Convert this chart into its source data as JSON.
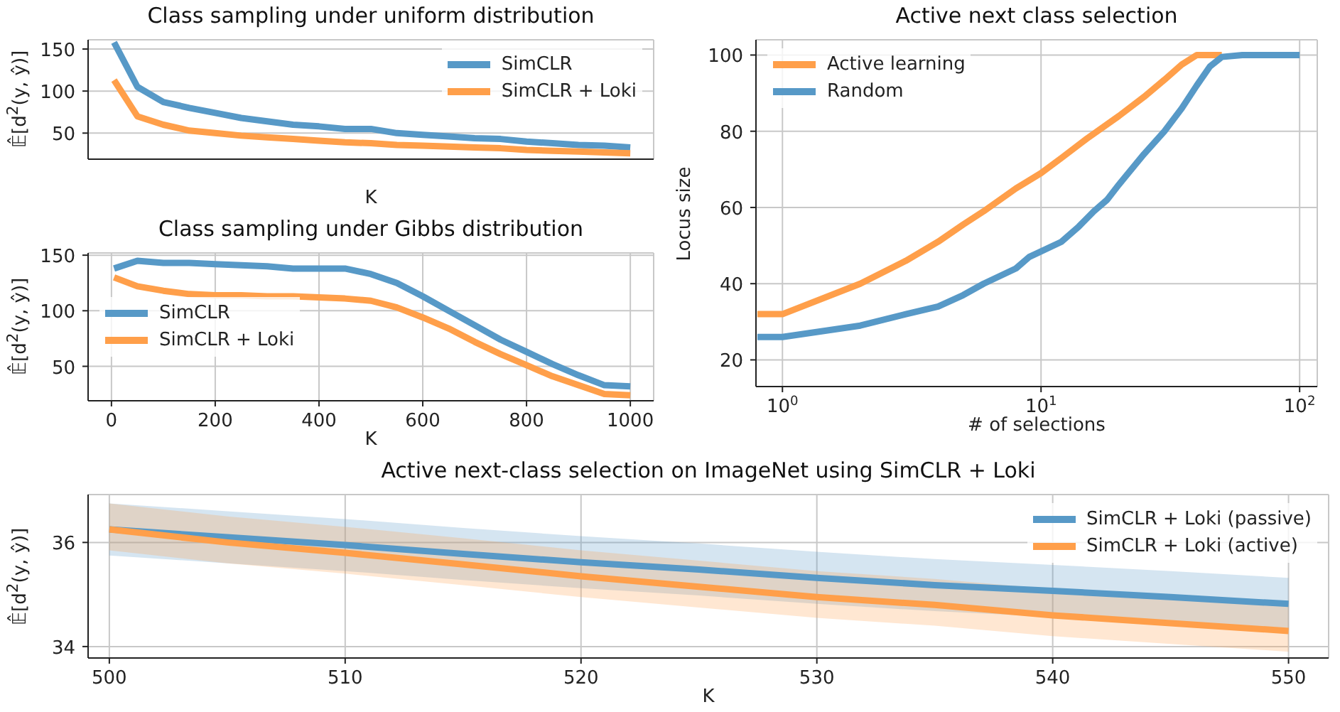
{
  "chart_data": [
    {
      "type": "line",
      "title": "Class sampling under uniform distribution",
      "xlabel": "K",
      "ylabel": "𝔼̂[d$^{2}$(y, ŷ)]",
      "xlim": [
        -45,
        1045
      ],
      "xticks": [
        0,
        200,
        400,
        600,
        800,
        1000
      ],
      "ylim": [
        19,
        161
      ],
      "yticks": [
        50,
        100,
        150
      ],
      "tick_labels": "y",
      "grid": true,
      "legend": "top right",
      "x": [
        5,
        50,
        100,
        150,
        200,
        250,
        300,
        350,
        400,
        450,
        500,
        550,
        600,
        650,
        700,
        750,
        800,
        850,
        900,
        950,
        1000
      ],
      "series": [
        {
          "name": "SimCLR",
          "color": "#5799c7",
          "values": [
            158,
            105,
            87,
            80,
            74,
            68,
            64,
            60,
            58,
            55,
            55,
            50,
            48,
            46,
            44,
            43,
            40,
            38,
            36,
            35,
            33
          ]
        },
        {
          "name": "SimCLR + Loki",
          "color": "#ff9f4a",
          "values": [
            113,
            70,
            60,
            53,
            50,
            47,
            45,
            43,
            41,
            39,
            38,
            36,
            35,
            34,
            33,
            32,
            30,
            29,
            28,
            27,
            26
          ]
        }
      ]
    },
    {
      "type": "line",
      "title": "Class sampling under Gibbs distribution",
      "xlabel": "K",
      "ylabel": "𝔼̂[d$^{2}$(y, ŷ)]",
      "xlim": [
        -45,
        1045
      ],
      "xticks": [
        0,
        200,
        400,
        600,
        800,
        1000
      ],
      "ylim": [
        19,
        152
      ],
      "yticks": [
        50,
        100,
        150
      ],
      "grid": true,
      "legend": "center left",
      "x": [
        5,
        50,
        100,
        150,
        200,
        250,
        300,
        350,
        400,
        450,
        500,
        550,
        600,
        650,
        700,
        750,
        800,
        850,
        900,
        950,
        1000
      ],
      "series": [
        {
          "name": "SimCLR",
          "color": "#5799c7",
          "values": [
            138,
            145,
            143,
            143,
            142,
            141,
            140,
            138,
            138,
            138,
            133,
            125,
            113,
            100,
            87,
            74,
            63,
            52,
            42,
            33,
            32
          ]
        },
        {
          "name": "SimCLR + Loki",
          "color": "#ff9f4a",
          "values": [
            130,
            122,
            118,
            115,
            114,
            114,
            113,
            113,
            112,
            111,
            109,
            103,
            94,
            84,
            72,
            61,
            51,
            41,
            33,
            25,
            24
          ]
        }
      ]
    },
    {
      "type": "line",
      "title": "Active next class selection",
      "xlabel": "# of selections",
      "ylabel": "Locus size",
      "log": "x",
      "xlim": [
        0.79,
        117
      ],
      "xticks": [
        {
          "value": 1,
          "label": "10$^{0}$"
        },
        {
          "value": 10,
          "label": "10$^{1}$"
        },
        {
          "value": 100,
          "label": "10$^{2}$"
        }
      ],
      "ylim": [
        13,
        104
      ],
      "yticks": [
        20,
        40,
        60,
        80,
        100
      ],
      "grid": true,
      "legend": "top left",
      "series": [
        {
          "name": "Active learning",
          "color": "#ff9f4a",
          "x": [
            0.8,
            1,
            2,
            3,
            4,
            5,
            6,
            8,
            10,
            12,
            15,
            20,
            25,
            30,
            35,
            40,
            50
          ],
          "values": [
            32,
            32,
            40,
            46,
            51,
            55.5,
            59,
            65,
            69,
            73,
            78,
            84,
            89,
            93.5,
            97.5,
            100,
            100
          ]
        },
        {
          "name": "Random",
          "color": "#5799c7",
          "x": [
            0.8,
            1,
            2,
            3,
            4,
            5,
            6,
            8,
            9,
            12,
            14,
            16,
            18,
            20,
            25,
            30,
            35,
            40,
            45,
            50,
            60,
            100
          ],
          "values": [
            26,
            26,
            29,
            32,
            34,
            37,
            40,
            44,
            47,
            51,
            55,
            59,
            62,
            66,
            74,
            80,
            86,
            92,
            97,
            99.5,
            100,
            100
          ]
        }
      ]
    },
    {
      "type": "line",
      "title": "Active next-class selection on ImageNet using SimCLR + Loki",
      "xlabel": "K",
      "ylabel": "𝔼̂[d$^{2}$(y, ŷ)]",
      "xlim": [
        499.1,
        551.7
      ],
      "xticks": [
        500,
        510,
        520,
        530,
        540,
        550
      ],
      "ylim": [
        33.78,
        36.92
      ],
      "yticks": [
        34,
        36
      ],
      "grid": true,
      "legend": "top right",
      "x": [
        500,
        505,
        510,
        515,
        520,
        525,
        530,
        535,
        540,
        545,
        550
      ],
      "series": [
        {
          "name": "SimCLR + Loki (passive)",
          "color": "#5799c7",
          "values": [
            36.25,
            36.1,
            35.95,
            35.78,
            35.62,
            35.48,
            35.32,
            35.18,
            35.07,
            34.95,
            34.82
          ],
          "lower": [
            35.75,
            35.6,
            35.45,
            35.28,
            35.12,
            34.98,
            34.82,
            34.68,
            34.57,
            34.45,
            34.32
          ],
          "upper": [
            36.75,
            36.6,
            36.45,
            36.28,
            36.12,
            35.98,
            35.82,
            35.68,
            35.57,
            35.45,
            35.32
          ]
        },
        {
          "name": "SimCLR + Loki (active)",
          "color": "#ff9f4a",
          "values": [
            36.25,
            36.0,
            35.8,
            35.58,
            35.35,
            35.15,
            34.95,
            34.8,
            34.6,
            34.45,
            34.3
          ],
          "lower": [
            35.85,
            35.6,
            35.4,
            35.18,
            34.95,
            34.75,
            34.55,
            34.4,
            34.2,
            34.05,
            33.9
          ],
          "upper": [
            36.75,
            36.5,
            36.3,
            36.08,
            35.85,
            35.65,
            35.45,
            35.3,
            35.1,
            34.95,
            34.8
          ]
        }
      ]
    }
  ]
}
